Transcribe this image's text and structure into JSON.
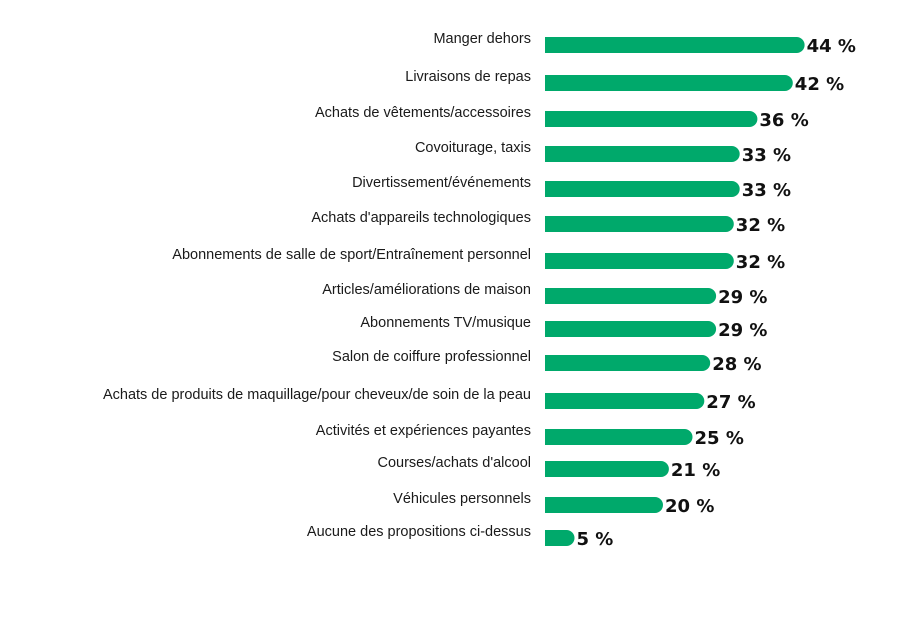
{
  "chart_data": {
    "type": "bar",
    "orientation": "horizontal",
    "unit_suffix": " %",
    "bar_color": "#00a96b",
    "grid": false,
    "categories": [
      "Manger dehors",
      "Livraisons de repas",
      "Achats de vêtements/accessoires",
      "Covoiturage, taxis",
      "Divertissement/événements",
      "Achats d'appareils technologiques",
      "Abonnements de salle de sport/Entraînement personnel",
      "Articles/améliorations de maison",
      "Abonnements TV/musique",
      "Salon de coiffure professionnel",
      "Achats de produits de maquillage/pour cheveux/de soin de la peau",
      "Activités et expériences payantes",
      "Courses/achats d'alcool",
      "Véhicules personnels",
      "Aucune des propositions ci-dessus"
    ],
    "values": [
      44,
      42,
      36,
      33,
      33,
      32,
      32,
      29,
      29,
      28,
      27,
      25,
      21,
      20,
      5
    ]
  }
}
